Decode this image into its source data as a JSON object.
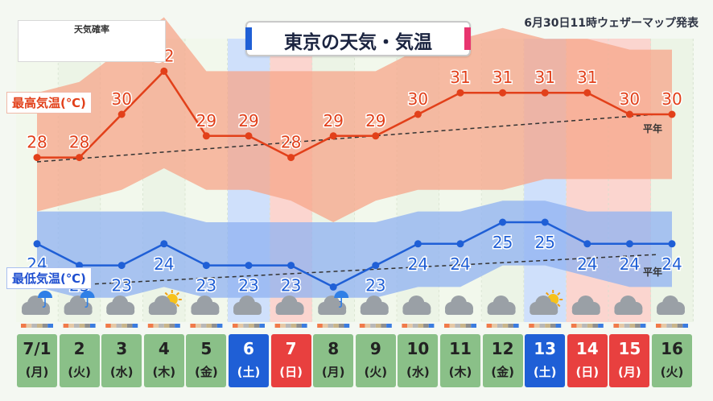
{
  "title": "東京の天気・気温",
  "issued": "6月30日11時ウェザーマップ発表",
  "legend": {
    "title": "天気確率",
    "icons": [
      "sun-icon",
      "sun-cloud-icon",
      "cloud-icon",
      "sun-cloud-icon",
      "cloud-icon",
      "umbrella-icon"
    ],
    "colors": [
      "#f07a4a",
      "#e6c9a6",
      "#b8b8b8",
      "#c9b58a",
      "#8f8f8f",
      "#3b7ce0"
    ]
  },
  "labels": {
    "high": "最高気温(℃)",
    "low": "最低気温(℃)",
    "normal": "平年"
  },
  "days": [
    {
      "date": "7/1",
      "dow": "(月)",
      "type": "normal",
      "weather": "cloud-rain"
    },
    {
      "date": "2",
      "dow": "(火)",
      "type": "normal",
      "weather": "cloud-rain"
    },
    {
      "date": "3",
      "dow": "(水)",
      "type": "normal",
      "weather": "cloud"
    },
    {
      "date": "4",
      "dow": "(木)",
      "type": "normal",
      "weather": "cloud-sun"
    },
    {
      "date": "5",
      "dow": "(金)",
      "type": "normal",
      "weather": "cloud"
    },
    {
      "date": "6",
      "dow": "(土)",
      "type": "sat",
      "weather": "cloud"
    },
    {
      "date": "7",
      "dow": "(日)",
      "type": "sun",
      "weather": "cloud"
    },
    {
      "date": "8",
      "dow": "(月)",
      "type": "normal",
      "weather": "cloud-rain"
    },
    {
      "date": "9",
      "dow": "(火)",
      "type": "normal",
      "weather": "cloud"
    },
    {
      "date": "10",
      "dow": "(水)",
      "type": "normal",
      "weather": "cloud"
    },
    {
      "date": "11",
      "dow": "(木)",
      "type": "normal",
      "weather": "cloud"
    },
    {
      "date": "12",
      "dow": "(金)",
      "type": "normal",
      "weather": "cloud"
    },
    {
      "date": "13",
      "dow": "(土)",
      "type": "sat",
      "weather": "cloud-sun"
    },
    {
      "date": "14",
      "dow": "(日)",
      "type": "sun",
      "weather": "cloud"
    },
    {
      "date": "15",
      "dow": "(月)",
      "type": "sun",
      "weather": "cloud"
    },
    {
      "date": "16",
      "dow": "(火)",
      "type": "normal",
      "weather": "cloud"
    }
  ],
  "chart_data": {
    "type": "line",
    "categories": [
      "7/1",
      "2",
      "3",
      "4",
      "5",
      "6",
      "7",
      "8",
      "9",
      "10",
      "11",
      "12",
      "13",
      "14",
      "15",
      "16"
    ],
    "series": [
      {
        "name": "最高気温(℃)",
        "values": [
          28,
          28,
          30,
          32,
          29,
          29,
          28,
          29,
          29,
          30,
          31,
          31,
          31,
          31,
          30,
          30
        ],
        "range_low": [
          25.5,
          26,
          26.5,
          27.5,
          26.5,
          26.5,
          26,
          25,
          26,
          26.5,
          26.5,
          26.5,
          27,
          27,
          27,
          27
        ],
        "range_high": [
          31,
          31.5,
          33,
          34.5,
          32,
          32,
          32,
          32,
          32,
          33,
          33.5,
          34,
          33.5,
          33.5,
          33,
          33
        ]
      },
      {
        "name": "最低気温(℃)",
        "values": [
          24,
          23,
          23,
          24,
          23,
          23,
          23,
          22,
          23,
          24,
          24,
          25,
          25,
          24,
          24,
          24
        ],
        "range_low": [
          22,
          21.5,
          21.5,
          22,
          21.5,
          21.5,
          21.5,
          21.5,
          21.5,
          22,
          22,
          23,
          23,
          22.5,
          22,
          22
        ],
        "range_high": [
          25.5,
          25.5,
          25.5,
          25.5,
          25,
          25,
          25,
          25,
          25,
          25.5,
          25.5,
          26,
          26,
          25.5,
          25.5,
          25.5
        ]
      }
    ],
    "normal_high": [
      27.8,
      30.0
    ],
    "normal_low": [
      22.0,
      23.5
    ],
    "colors": {
      "high": "#e2401a",
      "low": "#1f5fd6",
      "high_band": "#f7a58a",
      "low_band": "#8fb2f2",
      "normal": "#333333"
    },
    "shade_days": {
      "sat": "#cfe0fb",
      "sun": "#fbd5cf"
    }
  }
}
